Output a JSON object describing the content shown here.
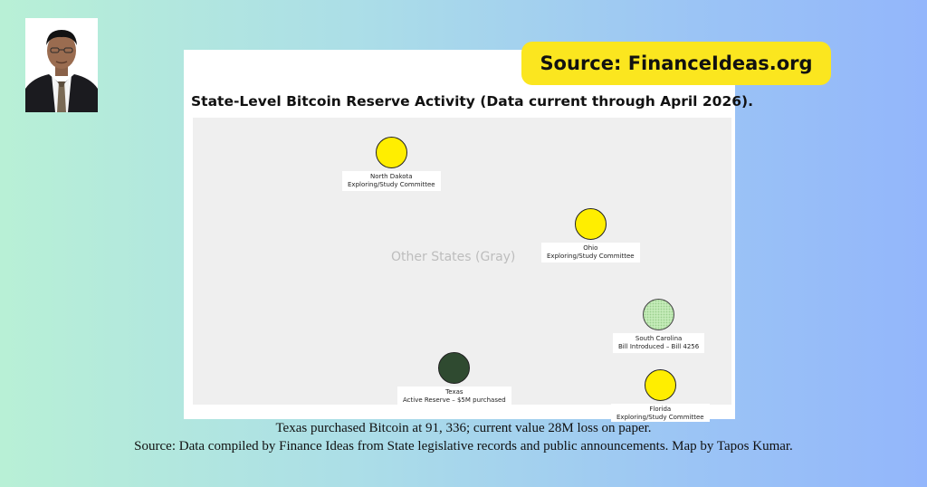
{
  "source_badge": "Source: FinanceIdeas.org",
  "card": {
    "title": "State-Level Bitcoin Reserve Activity (Data current through April 2026).",
    "other_states_label": "Other States (Gray)"
  },
  "states": [
    {
      "name": "North Dakota",
      "status": "Exploring/Study Committee",
      "color": "#ffee00"
    },
    {
      "name": "Ohio",
      "status": "Exploring/Study Committee",
      "color": "#ffee00"
    },
    {
      "name": "South Carolina",
      "status": "Bill Introduced – Bill 4256",
      "color": "#c4ebb8"
    },
    {
      "name": "Texas",
      "status": "Active Reserve – $5M purchased",
      "color": "#2f4a30"
    },
    {
      "name": "Florida",
      "status": "Exploring/Study Committee",
      "color": "#ffee00"
    }
  ],
  "captions": {
    "line1": "Texas purchased Bitcoin at 91, 336; current value 28M loss on paper.",
    "line2": "Source: Data compiled by Finance Ideas from State legislative records and public announcements. Map by Tapos Kumar."
  },
  "colors": {
    "background_left": "#b8f0d6",
    "background_right": "#93b6fb",
    "badge": "#fbe61f",
    "exploring": "#ffee00",
    "bill_introduced": "#c4ebb8",
    "active_reserve": "#2f4a30"
  },
  "icons": {
    "author_photo": "author-photo"
  }
}
